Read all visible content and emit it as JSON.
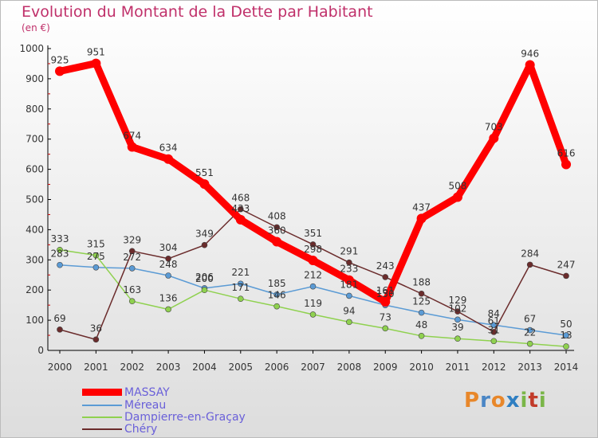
{
  "header": {
    "title": "Evolution du Montant de la Dette par Habitant",
    "subtitle": "(en €)"
  },
  "logo": {
    "text": "Proxiti",
    "colors": [
      "#e8872a",
      "#4a86c5",
      "#e8872a",
      "#2f7fc2",
      "#7ab648",
      "#c23b2a",
      "#7ab648"
    ]
  },
  "chart_data": {
    "type": "line",
    "title": "Evolution du Montant de la Dette par Habitant",
    "subtitle": "(en €)",
    "xlabel": "",
    "ylabel": "",
    "x": [
      "2000",
      "2001",
      "2002",
      "2003",
      "2004",
      "2005",
      "2006",
      "2007",
      "2008",
      "2009",
      "2010",
      "2011",
      "2012",
      "2013",
      "2014"
    ],
    "ylim": [
      0,
      1000
    ],
    "yticks": [
      0,
      100,
      200,
      300,
      400,
      500,
      600,
      700,
      800,
      900,
      1000
    ],
    "grid": false,
    "legend_position": "bottom-left",
    "series": [
      {
        "name": "MASSAY",
        "color": "#ff0000",
        "values": [
          925,
          951,
          674,
          634,
          551,
          433,
          360,
          298,
          233,
          161,
          437,
          508,
          703,
          946,
          616
        ],
        "labels": [
          "925",
          "951",
          "674",
          "634",
          "551",
          "433",
          "360",
          "298",
          "233",
          "161",
          "437",
          "508",
          "703",
          "946",
          "616"
        ]
      },
      {
        "name": "Méreau",
        "color": "#5b9bd5",
        "values": [
          283,
          275,
          272,
          248,
          206,
          221,
          185,
          212,
          181,
          150,
          125,
          102,
          84,
          67,
          50
        ],
        "labels": [
          "283",
          "275",
          "272",
          "248",
          "206",
          "221",
          "185",
          "212",
          "181",
          "150",
          "125",
          "102",
          "84",
          "67",
          "50"
        ]
      },
      {
        "name": "Dampierre-en-Graçay",
        "color": "#8fd14f",
        "values": [
          333,
          315,
          163,
          136,
          200,
          171,
          146,
          119,
          94,
          73,
          48,
          39,
          31,
          22,
          13
        ],
        "labels": [
          "333",
          "315",
          "163",
          "136",
          "200",
          "171",
          "146",
          "119",
          "94",
          "73",
          "48",
          "39",
          "31",
          "22",
          "13"
        ]
      },
      {
        "name": "Chéry",
        "color": "#6b2c2c",
        "values": [
          69,
          36,
          329,
          304,
          349,
          468,
          408,
          351,
          291,
          243,
          188,
          129,
          61,
          284,
          247
        ],
        "labels": [
          "69",
          "36",
          "329",
          "304",
          "349",
          "468",
          "408",
          "351",
          "291",
          "243",
          "188",
          "129",
          "61",
          "284",
          "247"
        ]
      }
    ]
  }
}
